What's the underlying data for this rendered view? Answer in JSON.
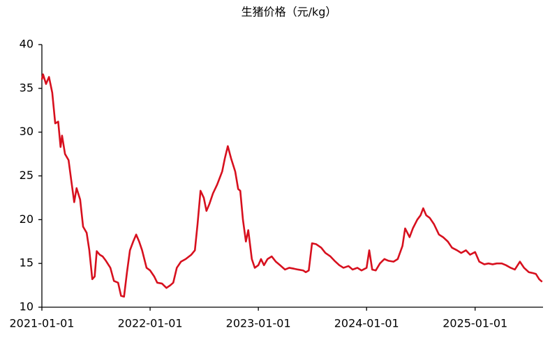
{
  "chart_data": {
    "type": "line",
    "title": "生猪价格（元/kg）",
    "x": [
      "2021-01-01",
      "2021-01-05",
      "2021-01-15",
      "2021-01-25",
      "2021-02-05",
      "2021-02-15",
      "2021-02-25",
      "2021-03-05",
      "2021-03-10",
      "2021-03-20",
      "2021-04-01",
      "2021-04-10",
      "2021-04-20",
      "2021-04-28",
      "2021-05-10",
      "2021-05-20",
      "2021-06-01",
      "2021-06-10",
      "2021-06-20",
      "2021-06-28",
      "2021-07-05",
      "2021-07-15",
      "2021-07-25",
      "2021-08-05",
      "2021-08-20",
      "2021-09-01",
      "2021-09-15",
      "2021-09-25",
      "2021-10-05",
      "2021-10-15",
      "2021-10-25",
      "2021-11-05",
      "2021-11-15",
      "2021-11-25",
      "2021-12-05",
      "2021-12-20",
      "2022-01-01",
      "2022-01-15",
      "2022-01-25",
      "2022-02-10",
      "2022-02-25",
      "2022-03-10",
      "2022-03-20",
      "2022-04-01",
      "2022-04-15",
      "2022-05-01",
      "2022-05-20",
      "2022-06-01",
      "2022-06-10",
      "2022-06-20",
      "2022-07-01",
      "2022-07-10",
      "2022-07-20",
      "2022-08-01",
      "2022-08-15",
      "2022-09-01",
      "2022-09-10",
      "2022-09-20",
      "2022-10-01",
      "2022-10-15",
      "2022-10-25",
      "2022-11-01",
      "2022-11-10",
      "2022-11-20",
      "2022-11-28",
      "2022-12-10",
      "2022-12-20",
      "2023-01-01",
      "2023-01-10",
      "2023-01-20",
      "2023-02-01",
      "2023-02-15",
      "2023-03-01",
      "2023-03-15",
      "2023-04-01",
      "2023-04-15",
      "2023-05-01",
      "2023-05-15",
      "2023-06-01",
      "2023-06-10",
      "2023-06-20",
      "2023-07-01",
      "2023-07-15",
      "2023-08-01",
      "2023-08-15",
      "2023-09-01",
      "2023-09-15",
      "2023-10-01",
      "2023-10-15",
      "2023-11-01",
      "2023-11-15",
      "2023-12-01",
      "2023-12-15",
      "2024-01-01",
      "2024-01-10",
      "2024-01-20",
      "2024-02-01",
      "2024-02-15",
      "2024-03-01",
      "2024-03-15",
      "2024-04-01",
      "2024-04-15",
      "2024-05-01",
      "2024-05-10",
      "2024-05-25",
      "2024-06-05",
      "2024-06-20",
      "2024-07-01",
      "2024-07-10",
      "2024-07-20",
      "2024-08-01",
      "2024-08-15",
      "2024-09-01",
      "2024-09-15",
      "2024-10-01",
      "2024-10-15",
      "2024-11-01",
      "2024-11-15",
      "2024-12-01",
      "2024-12-15",
      "2025-01-01",
      "2025-01-15",
      "2025-02-01",
      "2025-02-15",
      "2025-03-01",
      "2025-03-15",
      "2025-04-01",
      "2025-04-15",
      "2025-05-01",
      "2025-05-15",
      "2025-06-01",
      "2025-06-15",
      "2025-07-01",
      "2025-07-15",
      "2025-07-25",
      "2025-08-05",
      "2025-08-15"
    ],
    "series": [
      {
        "name": "生猪价格",
        "color": "#d7101e",
        "values": [
          36.0,
          36.6,
          35.5,
          36.3,
          34.5,
          31.0,
          31.2,
          28.3,
          29.6,
          27.5,
          26.8,
          24.5,
          22.0,
          23.6,
          22.3,
          19.2,
          18.5,
          16.5,
          13.2,
          13.5,
          16.4,
          16.0,
          15.8,
          15.3,
          14.5,
          13.0,
          12.8,
          11.3,
          11.2,
          14.0,
          16.5,
          17.5,
          18.3,
          17.5,
          16.5,
          14.5,
          14.2,
          13.5,
          12.8,
          12.7,
          12.2,
          12.5,
          12.8,
          14.5,
          15.2,
          15.5,
          16.0,
          16.5,
          19.5,
          23.3,
          22.5,
          21.0,
          21.8,
          23.0,
          24.0,
          25.5,
          27.0,
          28.4,
          27.0,
          25.5,
          23.5,
          23.3,
          20.0,
          17.5,
          18.8,
          15.5,
          14.5,
          14.8,
          15.5,
          14.8,
          15.5,
          15.8,
          15.2,
          14.8,
          14.3,
          14.5,
          14.4,
          14.3,
          14.2,
          14.0,
          14.2,
          17.3,
          17.2,
          16.8,
          16.2,
          15.8,
          15.3,
          14.8,
          14.5,
          14.7,
          14.3,
          14.5,
          14.2,
          14.5,
          16.5,
          14.3,
          14.2,
          15.0,
          15.5,
          15.3,
          15.2,
          15.5,
          17.0,
          19.0,
          18.0,
          19.0,
          20.0,
          20.5,
          21.3,
          20.5,
          20.2,
          19.5,
          18.3,
          18.0,
          17.5,
          16.8,
          16.5,
          16.2,
          16.5,
          16.0,
          16.3,
          15.2,
          14.9,
          15.0,
          14.9,
          15.0,
          15.0,
          14.8,
          14.5,
          14.3,
          15.2,
          14.5,
          14.0,
          13.9,
          13.8,
          13.2,
          12.9
        ]
      }
    ],
    "xlim": [
      "2021-01-01",
      "2025-08-18"
    ],
    "xticks": [
      "2021-01-01",
      "2022-01-01",
      "2023-01-01",
      "2024-01-01",
      "2025-01-01"
    ],
    "ylim": [
      10,
      40
    ],
    "yticks": [
      10,
      15,
      20,
      25,
      30,
      35,
      40
    ],
    "grid": false
  }
}
